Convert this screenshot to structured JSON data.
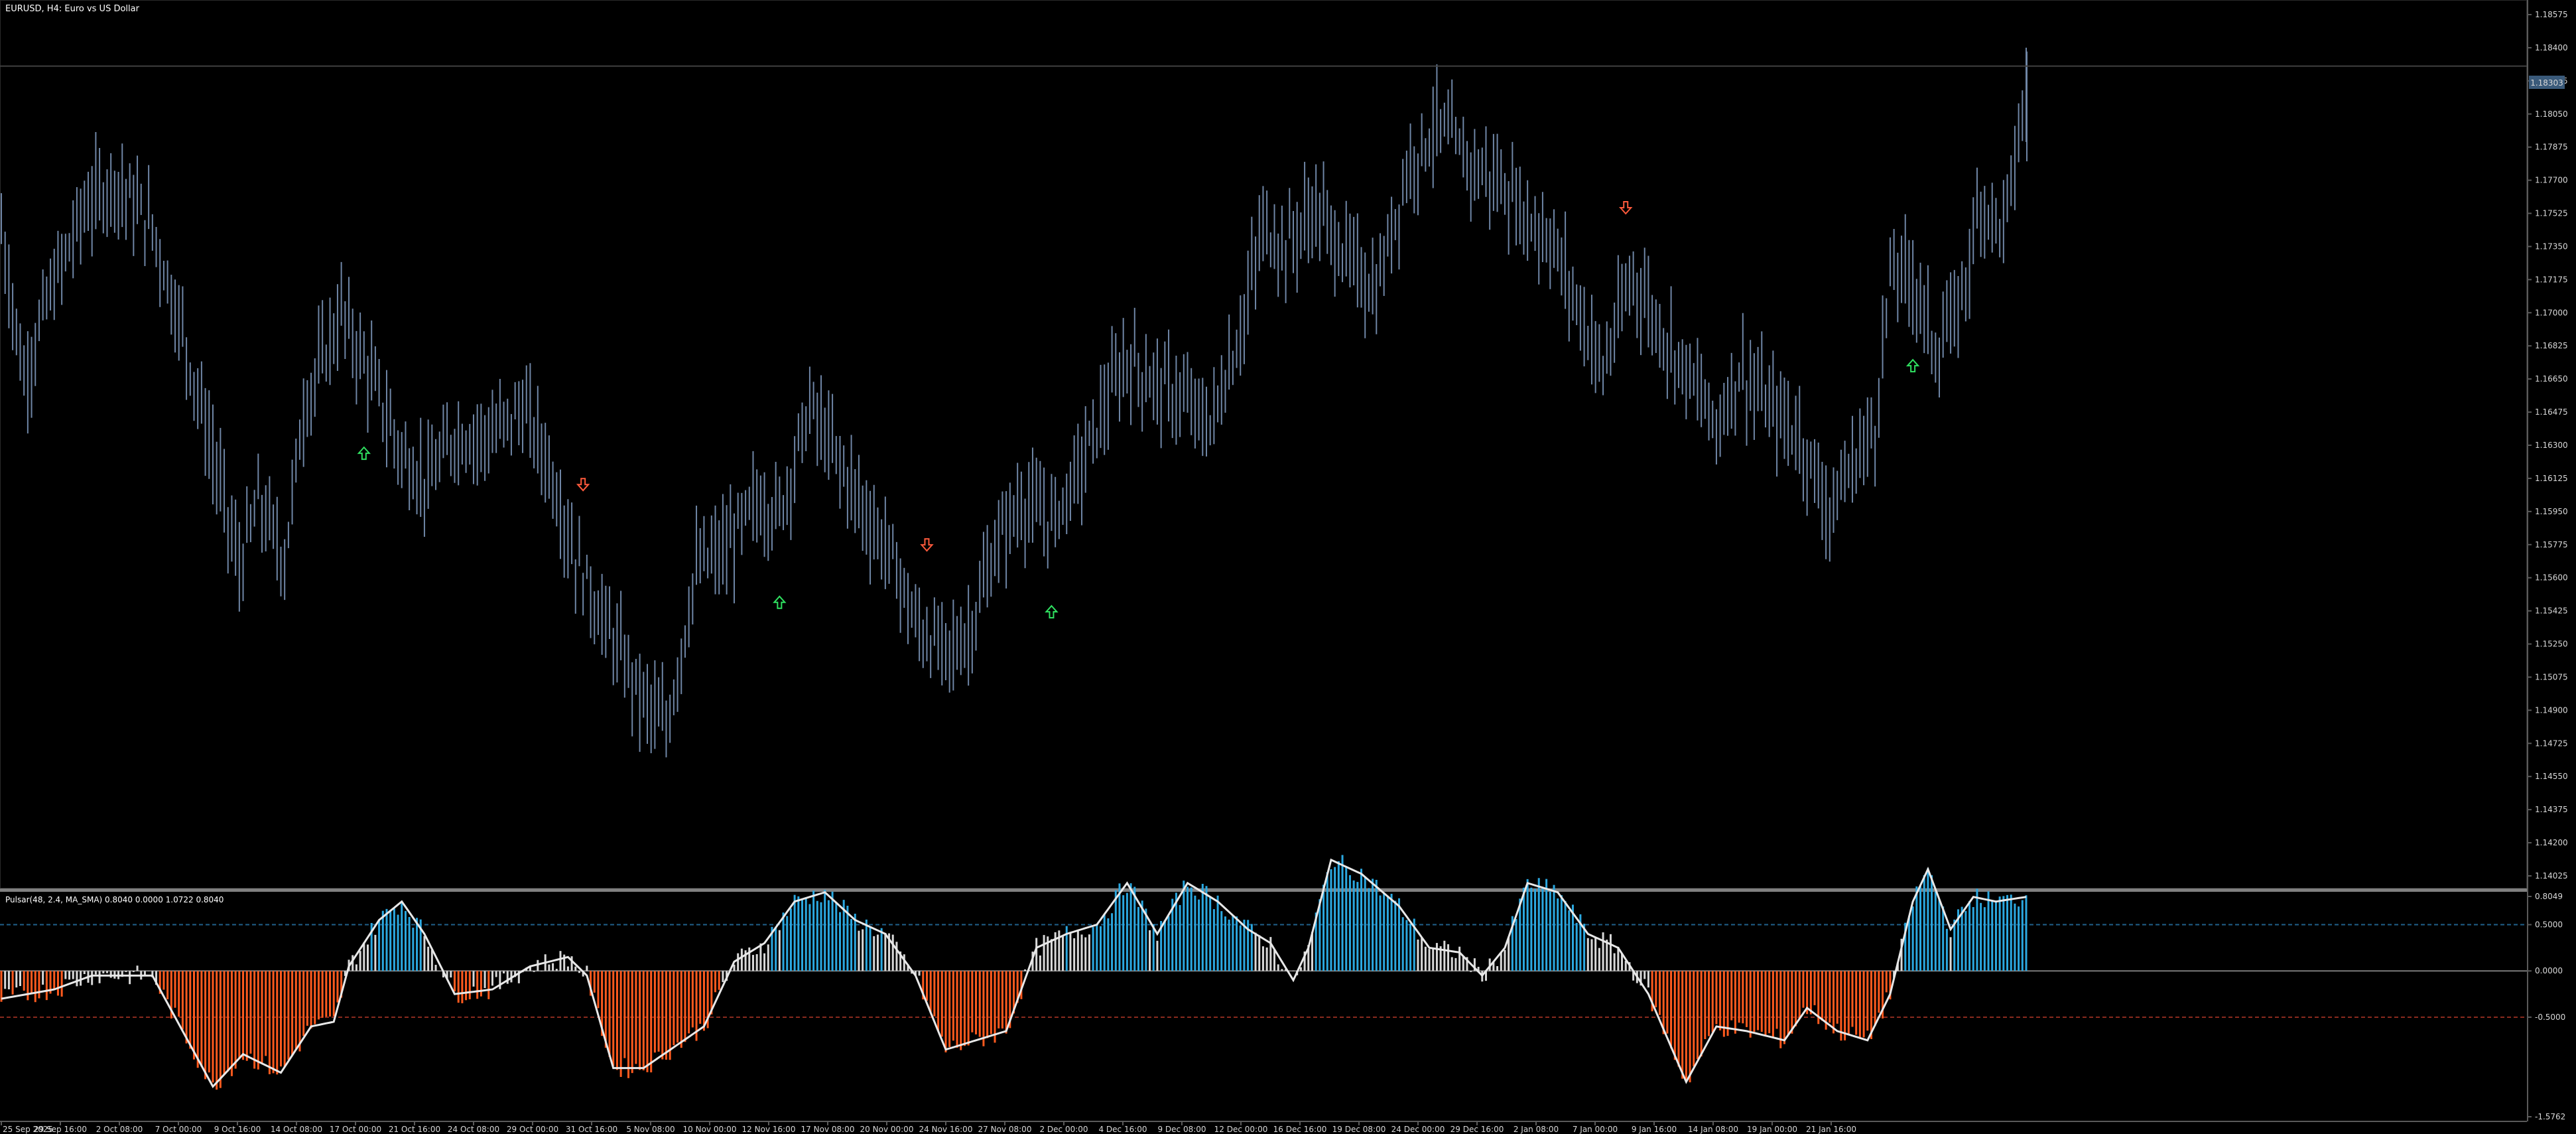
{
  "window": {
    "title": "EURUSD, H4:  Euro vs US Dollar",
    "indicator_label": "Pulsar(48, 2.4, MA_SMA) 0.8040 0.0000 1.0722 0.8040",
    "current_price": "1.18303"
  },
  "colors": {
    "background": "#000000",
    "price_bars": "#6f86a6",
    "up_arrow": "#2fe060",
    "down_arrow": "#ff5a3c",
    "hist_blue": "#2ba8e0",
    "hist_white": "#d8d8d8",
    "hist_orange": "#ff5a1e",
    "smooth_line": "#e8e8e8",
    "level_blue": "#1f5f8a",
    "level_red": "#8a2a1e",
    "grid_text": "#d8d8d8"
  },
  "chart_data": [
    {
      "type": "ohlc",
      "name": "EURUSD H4",
      "ylim": [
        1.1385,
        1.1875
      ],
      "y_ticks": [
        "1.18575",
        "1.18400",
        "1.18225",
        "1.18050",
        "1.17875",
        "1.17700",
        "1.17525",
        "1.17350",
        "1.17175",
        "1.17000",
        "1.16825",
        "1.16650",
        "1.16475",
        "1.16300",
        "1.16125",
        "1.15950",
        "1.15775",
        "1.15600",
        "1.15425",
        "1.15250",
        "1.15075",
        "1.14900",
        "1.14725",
        "1.14550",
        "1.14375",
        "1.14200",
        "1.14025"
      ],
      "x_ticks": [
        "25 Sep 2025",
        "29 Sep 16:00",
        "2 Oct 08:00",
        "7 Oct 00:00",
        "9 Oct 16:00",
        "14 Oct 08:00",
        "17 Oct 00:00",
        "21 Oct 16:00",
        "24 Oct 08:00",
        "29 Oct 00:00",
        "31 Oct 16:00",
        "5 Nov 08:00",
        "10 Nov 00:00",
        "12 Nov 16:00",
        "17 Nov 08:00",
        "20 Nov 00:00",
        "24 Nov 16:00",
        "27 Nov 08:00",
        "2 Dec 00:00",
        "4 Dec 16:00",
        "9 Dec 08:00",
        "12 Dec 00:00",
        "16 Dec 16:00",
        "19 Dec 08:00",
        "24 Dec 00:00",
        "29 Dec 16:00",
        "2 Jan 08:00",
        "7 Jan 00:00",
        "9 Jan 16:00",
        "14 Jan 08:00",
        "19 Jan 00:00",
        "21 Jan 16:00"
      ],
      "path_anchors": [
        [
          0,
          1.1745
        ],
        [
          6,
          1.1665
        ],
        [
          12,
          1.1705
        ],
        [
          22,
          1.1755
        ],
        [
          30,
          1.177
        ],
        [
          40,
          1.1745
        ],
        [
          48,
          1.169
        ],
        [
          56,
          1.1625
        ],
        [
          63,
          1.1565
        ],
        [
          68,
          1.16
        ],
        [
          75,
          1.157
        ],
        [
          80,
          1.165
        ],
        [
          90,
          1.17
        ],
        [
          98,
          1.1665
        ],
        [
          106,
          1.1625
        ],
        [
          113,
          1.161
        ],
        [
          120,
          1.1635
        ],
        [
          130,
          1.1635
        ],
        [
          138,
          1.165
        ],
        [
          145,
          1.162
        ],
        [
          152,
          1.157
        ],
        [
          160,
          1.1535
        ],
        [
          170,
          1.1495
        ],
        [
          176,
          1.148
        ],
        [
          184,
          1.1565
        ],
        [
          192,
          1.1575
        ],
        [
          200,
          1.16
        ],
        [
          206,
          1.1595
        ],
        [
          214,
          1.165
        ],
        [
          222,
          1.162
        ],
        [
          230,
          1.159
        ],
        [
          236,
          1.157
        ],
        [
          242,
          1.1535
        ],
        [
          250,
          1.152
        ],
        [
          256,
          1.153
        ],
        [
          264,
          1.158
        ],
        [
          270,
          1.16
        ],
        [
          278,
          1.159
        ],
        [
          286,
          1.162
        ],
        [
          292,
          1.165
        ],
        [
          298,
          1.1675
        ],
        [
          304,
          1.1665
        ],
        [
          312,
          1.1655
        ],
        [
          320,
          1.164
        ],
        [
          328,
          1.169
        ],
        [
          334,
          1.1745
        ],
        [
          340,
          1.1735
        ],
        [
          348,
          1.1755
        ],
        [
          356,
          1.173
        ],
        [
          364,
          1.171
        ],
        [
          372,
          1.1775
        ],
        [
          380,
          1.18
        ],
        [
          388,
          1.178
        ],
        [
          396,
          1.177
        ],
        [
          404,
          1.175
        ],
        [
          410,
          1.174
        ],
        [
          416,
          1.171
        ],
        [
          424,
          1.167
        ],
        [
          432,
          1.172
        ],
        [
          438,
          1.1695
        ],
        [
          446,
          1.167
        ],
        [
          454,
          1.164
        ],
        [
          460,
          1.167
        ],
        [
          468,
          1.165
        ],
        [
          476,
          1.1635
        ],
        [
          484,
          1.1595
        ],
        [
          490,
          1.162
        ],
        [
          496,
          1.164
        ],
        [
          500,
          1.172
        ],
        [
          506,
          1.172
        ],
        [
          512,
          1.168
        ],
        [
          518,
          1.17
        ],
        [
          524,
          1.176
        ],
        [
          530,
          1.1745
        ],
        [
          536,
          1.1815
        ]
      ],
      "arrows": [
        {
          "index": 96,
          "direction": "up"
        },
        {
          "index": 154,
          "direction": "down"
        },
        {
          "index": 206,
          "direction": "up"
        },
        {
          "index": 245,
          "direction": "down"
        },
        {
          "index": 278,
          "direction": "up"
        },
        {
          "index": 430,
          "direction": "down"
        },
        {
          "index": 506,
          "direction": "up"
        }
      ]
    },
    {
      "type": "histogram",
      "name": "Pulsar(48, 2.4, MA_SMA)",
      "ylim": [
        -1.5762,
        0.8049
      ],
      "y_ticks": [
        "0.8049",
        "0.5000",
        "0.0000",
        "-0.5000",
        "-1.5762"
      ],
      "levels": [
        0.5,
        0.0,
        -0.5
      ],
      "last_values": [
        0.804,
        0.0,
        1.0722,
        0.804
      ],
      "path_anchors": [
        [
          0,
          -0.3
        ],
        [
          14,
          -0.2
        ],
        [
          24,
          -0.05
        ],
        [
          34,
          -0.05
        ],
        [
          40,
          -0.05
        ],
        [
          46,
          -0.5
        ],
        [
          56,
          -1.25
        ],
        [
          64,
          -0.9
        ],
        [
          74,
          -1.1
        ],
        [
          82,
          -0.6
        ],
        [
          88,
          -0.55
        ],
        [
          92,
          0.05
        ],
        [
          100,
          0.55
        ],
        [
          106,
          0.75
        ],
        [
          112,
          0.4
        ],
        [
          120,
          -0.25
        ],
        [
          130,
          -0.2
        ],
        [
          140,
          0.05
        ],
        [
          150,
          0.15
        ],
        [
          155,
          -0.05
        ],
        [
          162,
          -1.05
        ],
        [
          170,
          -1.05
        ],
        [
          186,
          -0.6
        ],
        [
          194,
          0.1
        ],
        [
          202,
          0.3
        ],
        [
          210,
          0.75
        ],
        [
          218,
          0.85
        ],
        [
          226,
          0.55
        ],
        [
          234,
          0.4
        ],
        [
          242,
          -0.05
        ],
        [
          250,
          -0.85
        ],
        [
          258,
          -0.75
        ],
        [
          266,
          -0.65
        ],
        [
          274,
          0.25
        ],
        [
          282,
          0.4
        ],
        [
          290,
          0.5
        ],
        [
          298,
          0.95
        ],
        [
          306,
          0.4
        ],
        [
          314,
          0.95
        ],
        [
          322,
          0.75
        ],
        [
          330,
          0.45
        ],
        [
          336,
          0.3
        ],
        [
          342,
          -0.1
        ],
        [
          346,
          0.25
        ],
        [
          352,
          1.2
        ],
        [
          360,
          1.05
        ],
        [
          370,
          0.7
        ],
        [
          378,
          0.25
        ],
        [
          386,
          0.2
        ],
        [
          392,
          -0.05
        ],
        [
          398,
          0.25
        ],
        [
          404,
          0.95
        ],
        [
          412,
          0.85
        ],
        [
          420,
          0.4
        ],
        [
          428,
          0.25
        ],
        [
          436,
          -0.25
        ],
        [
          446,
          -1.2
        ],
        [
          454,
          -0.6
        ],
        [
          462,
          -0.65
        ],
        [
          472,
          -0.75
        ],
        [
          478,
          -0.4
        ],
        [
          486,
          -0.65
        ],
        [
          494,
          -0.75
        ],
        [
          500,
          -0.25
        ],
        [
          506,
          0.75
        ],
        [
          510,
          1.1
        ],
        [
          516,
          0.45
        ],
        [
          522,
          0.8
        ],
        [
          528,
          0.75
        ],
        [
          536,
          0.8
        ]
      ]
    }
  ]
}
